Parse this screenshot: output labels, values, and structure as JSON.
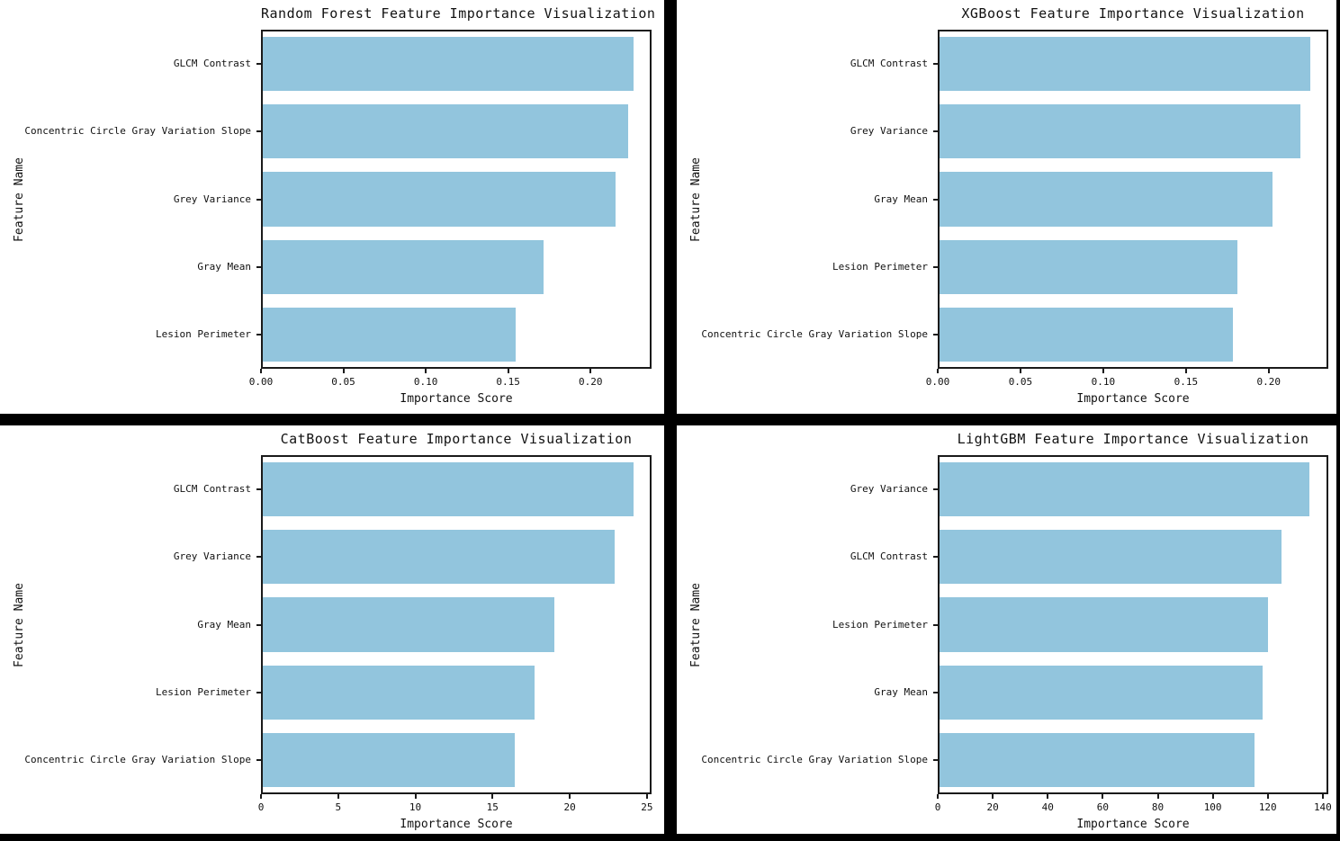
{
  "figure": {
    "layout": "2x2 grid of matplotlib-style horizontal bar charts",
    "separator_color": "#000000",
    "panel_background": "#ffffff",
    "bar_color": "#92c5dd",
    "axis_color": "#1a1a1a",
    "text_color": "#111111"
  },
  "chart_data": [
    {
      "type": "bar",
      "orientation": "horizontal",
      "title": "Random Forest Feature Importance Visualization",
      "xlabel": "Importance Score",
      "ylabel": "Feature Name",
      "categories": [
        "GLCM Contrast",
        "Concentric Circle Gray Variation Slope",
        "Grey Variance",
        "Gray Mean",
        "Lesion Perimeter"
      ],
      "values": [
        0.226,
        0.223,
        0.215,
        0.171,
        0.154
      ],
      "xlim": [
        0,
        0.237
      ],
      "xticks": [
        0.0,
        0.05,
        0.1,
        0.15,
        0.2
      ],
      "xtick_labels": [
        "0.00",
        "0.05",
        "0.10",
        "0.15",
        "0.20"
      ],
      "grid": false,
      "legend_position": "none"
    },
    {
      "type": "bar",
      "orientation": "horizontal",
      "title": "XGBoost Feature Importance Visualization",
      "xlabel": "Importance Score",
      "ylabel": "Feature Name",
      "categories": [
        "GLCM Contrast",
        "Grey Variance",
        "Gray Mean",
        "Lesion Perimeter",
        "Concentric Circle Gray Variation Slope"
      ],
      "values": [
        0.225,
        0.219,
        0.202,
        0.181,
        0.178
      ],
      "xlim": [
        0,
        0.236
      ],
      "xticks": [
        0.0,
        0.05,
        0.1,
        0.15,
        0.2
      ],
      "xtick_labels": [
        "0.00",
        "0.05",
        "0.10",
        "0.15",
        "0.20"
      ],
      "grid": false,
      "legend_position": "none"
    },
    {
      "type": "bar",
      "orientation": "horizontal",
      "title": "CatBoost Feature Importance Visualization",
      "xlabel": "Importance Score",
      "ylabel": "Feature Name",
      "categories": [
        "GLCM Contrast",
        "Grey Variance",
        "Gray Mean",
        "Lesion Perimeter",
        "Concentric Circle Gray Variation Slope"
      ],
      "values": [
        24.1,
        22.9,
        19.0,
        17.7,
        16.4
      ],
      "xlim": [
        0,
        25.3
      ],
      "xticks": [
        0,
        5,
        10,
        15,
        20,
        25
      ],
      "xtick_labels": [
        "0",
        "5",
        "10",
        "15",
        "20",
        "25"
      ],
      "grid": false,
      "legend_position": "none"
    },
    {
      "type": "bar",
      "orientation": "horizontal",
      "title": "LightGBM Feature Importance Visualization",
      "xlabel": "Importance Score",
      "ylabel": "Feature Name",
      "categories": [
        "Grey Variance",
        "GLCM Contrast",
        "Lesion Perimeter",
        "Gray Mean",
        "Concentric Circle Gray Variation Slope"
      ],
      "values": [
        135,
        125,
        120,
        118,
        115
      ],
      "xlim": [
        0,
        142
      ],
      "xticks": [
        0,
        20,
        40,
        60,
        80,
        100,
        120,
        140
      ],
      "xtick_labels": [
        "0",
        "20",
        "40",
        "60",
        "80",
        "100",
        "120",
        "140"
      ],
      "grid": false,
      "legend_position": "none"
    }
  ]
}
